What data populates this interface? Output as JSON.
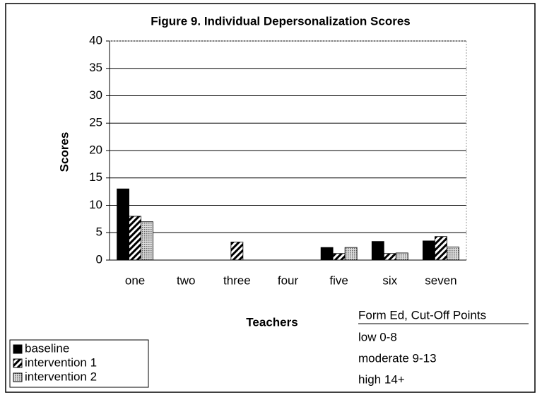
{
  "chart_data": {
    "type": "bar",
    "title": "Figure 9. Individual Depersonalization Scores",
    "x_label": "Teachers",
    "y_label": "Scores",
    "categories": [
      "one",
      "two",
      "three",
      "four",
      "five",
      "six",
      "seven"
    ],
    "series": [
      {
        "name": "baseline",
        "color": "#000000",
        "pattern": "solid",
        "values": [
          13,
          0,
          0,
          0,
          2.3,
          3.4,
          3.5
        ]
      },
      {
        "name": "intervention 1",
        "color": "#000000",
        "pattern": "hatch",
        "values": [
          8,
          0,
          3.3,
          0,
          1.2,
          1.2,
          4.3
        ]
      },
      {
        "name": "intervention 2",
        "color": "#999999",
        "pattern": "dots",
        "values": [
          7,
          0,
          0,
          0,
          2.3,
          1.3,
          2.4
        ]
      }
    ],
    "ylim": [
      0,
      40
    ],
    "yticks": [
      0,
      5,
      10,
      15,
      20,
      25,
      30,
      35,
      40
    ],
    "grid": true,
    "legend": "bottom-left",
    "annotation": {
      "heading": "Form Ed, Cut-Off Points",
      "lines": [
        "low 0-8",
        "moderate 9-13",
        "high 14+"
      ]
    }
  }
}
